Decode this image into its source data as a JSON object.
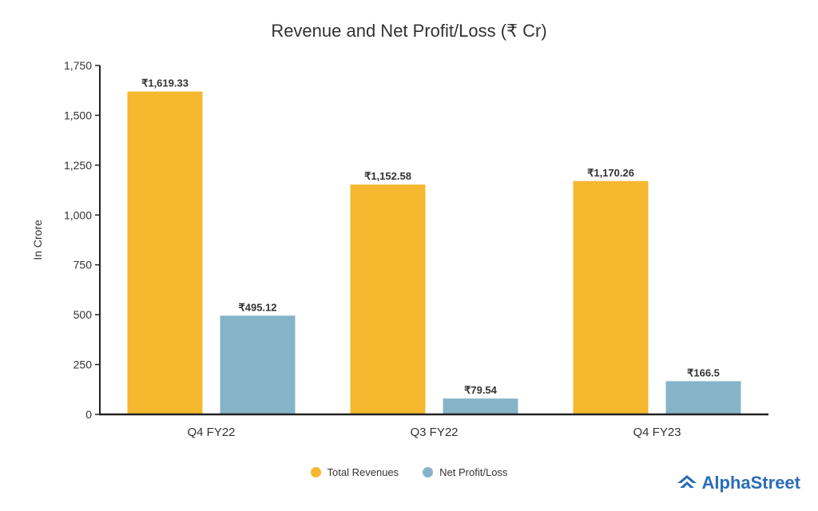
{
  "chart_data": {
    "type": "bar",
    "title": "Revenue and Net Profit/Loss (₹ Cr)",
    "ylabel": "In Crore",
    "xlabel": "",
    "ylim": [
      0,
      1750
    ],
    "yticks": [
      0,
      250,
      500,
      750,
      1000,
      1250,
      1500,
      1750
    ],
    "ytick_labels": [
      "0",
      "250",
      "500",
      "750",
      "1,000",
      "1,250",
      "1,500",
      "1,750"
    ],
    "categories": [
      "Q4 FY22",
      "Q3 FY22",
      "Q4 FY23"
    ],
    "grid": false,
    "legend_position": "bottom-center",
    "series": [
      {
        "name": "Total Revenues",
        "color": "#F5B82E",
        "values": [
          1619.33,
          1152.58,
          1170.26
        ],
        "labels": [
          "₹1,619.33",
          "₹1,152.58",
          "₹1,170.26"
        ]
      },
      {
        "name": "Net Profit/Loss",
        "color": "#85B4C9",
        "values": [
          495.12,
          79.54,
          166.5
        ],
        "labels": [
          "₹495.12",
          "₹79.54",
          "₹166.5"
        ]
      }
    ]
  },
  "brand": {
    "name": "AlphaStreet",
    "color": "#2a6db5"
  }
}
